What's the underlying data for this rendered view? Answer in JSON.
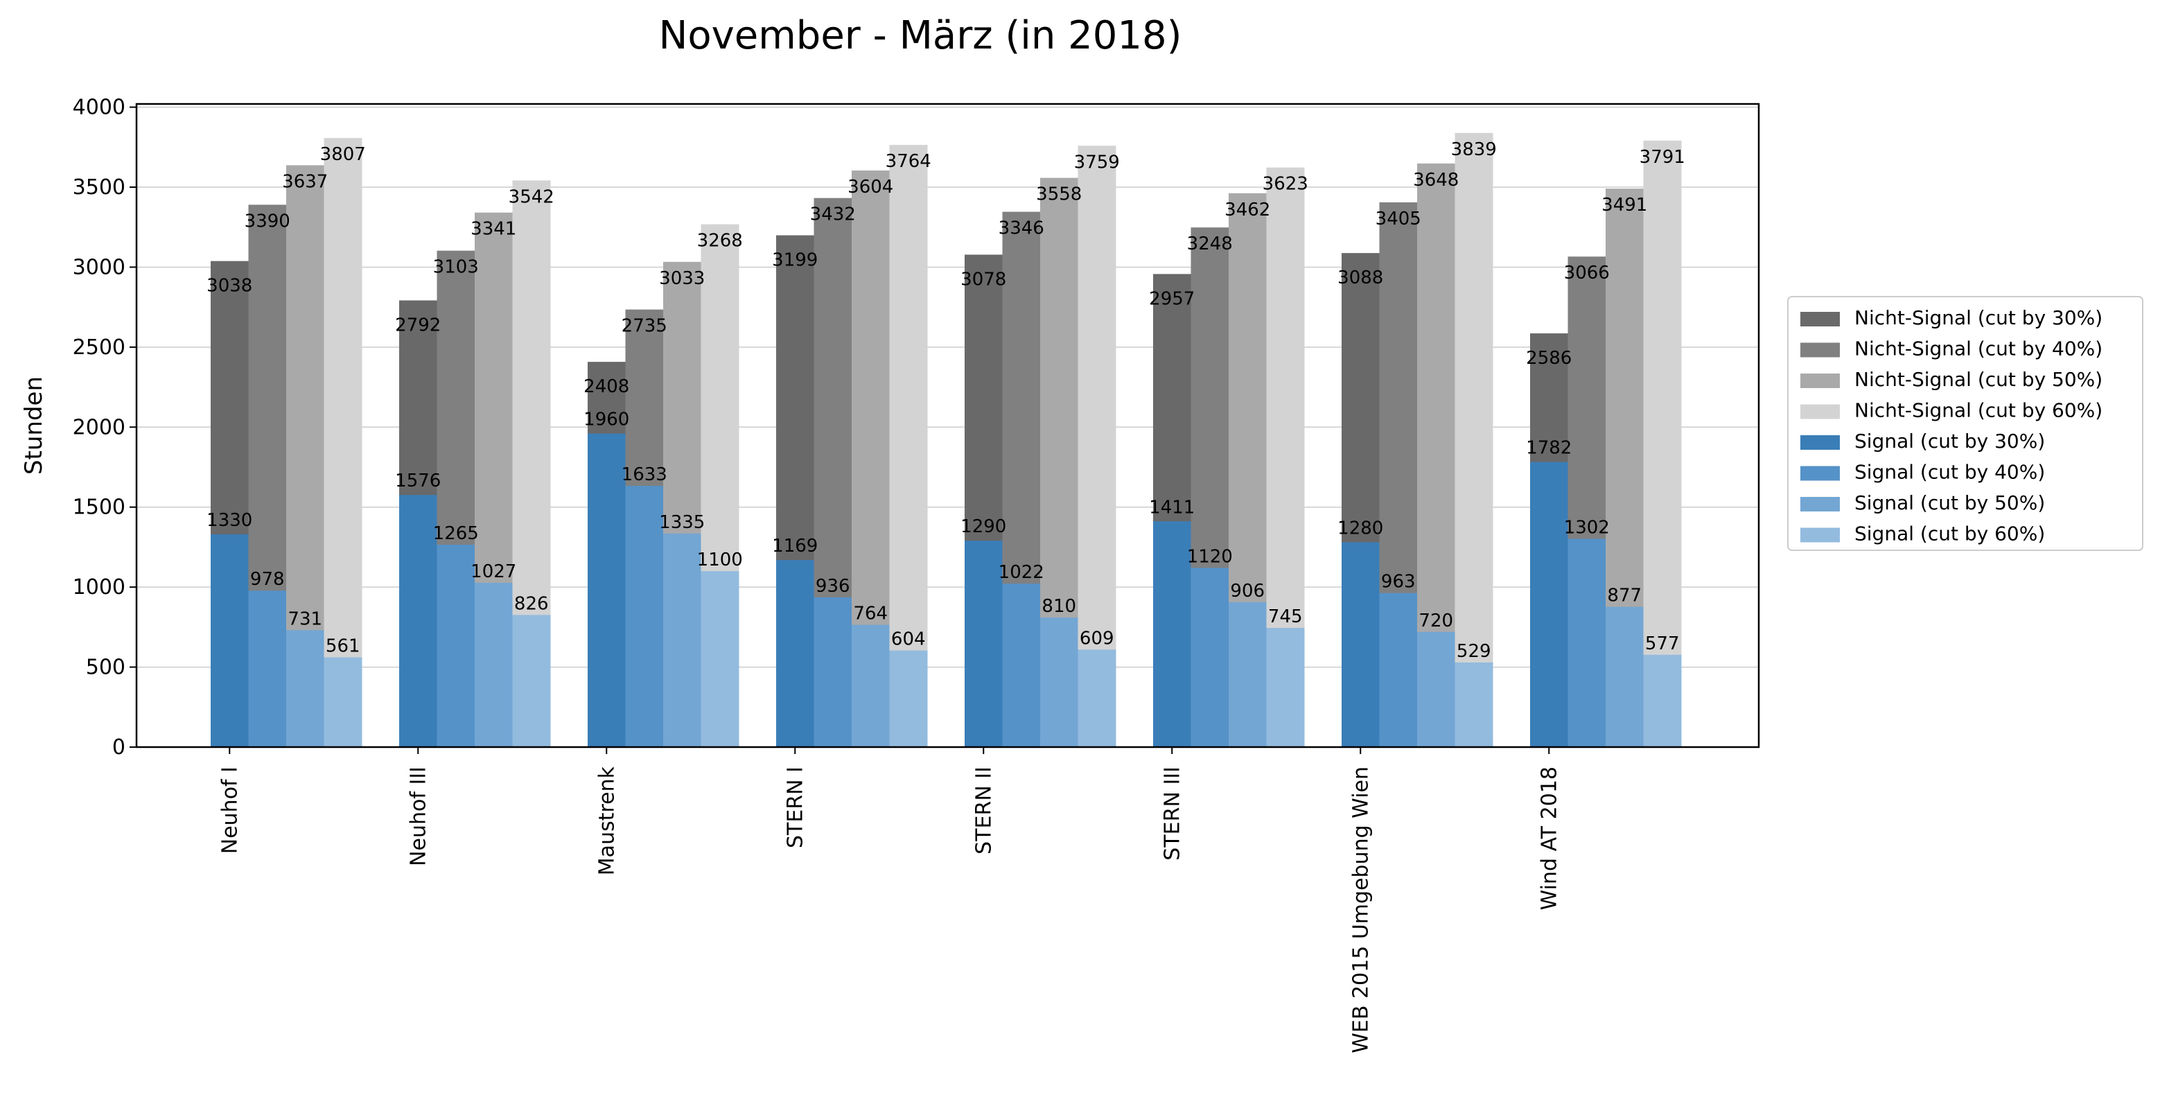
{
  "chart_data": {
    "type": "bar",
    "title": "November - März (in 2018)",
    "xlabel": "",
    "ylabel": "Stunden",
    "ylim": [
      0,
      4020
    ],
    "yticks": [
      0,
      500,
      1000,
      1500,
      2000,
      2500,
      3000,
      3500,
      4000
    ],
    "grid": "y",
    "legend_position": "right",
    "categories": [
      "Neuhof I",
      "Neuhof III",
      "Maustrenk",
      "STERN I",
      "STERN II",
      "STERN III",
      "WEB 2015 Umgebung Wien",
      "Wind AT 2018"
    ],
    "series": [
      {
        "name": "Nicht-Signal (cut by 30%)",
        "color": "#696969",
        "values": [
          3038,
          2792,
          2408,
          3199,
          3078,
          2957,
          3088,
          2586
        ]
      },
      {
        "name": "Nicht-Signal (cut by 40%)",
        "color": "#808080",
        "values": [
          3390,
          3103,
          2735,
          3432,
          3346,
          3248,
          3405,
          3066
        ]
      },
      {
        "name": "Nicht-Signal (cut by 50%)",
        "color": "#a9a9a9",
        "values": [
          3637,
          3341,
          3033,
          3604,
          3558,
          3462,
          3648,
          3491
        ]
      },
      {
        "name": "Nicht-Signal (cut by 60%)",
        "color": "#d3d3d3",
        "values": [
          3807,
          3542,
          3268,
          3764,
          3759,
          3623,
          3839,
          3791
        ]
      },
      {
        "name": "Signal (cut by 30%)",
        "color": "#3a7eb8",
        "values": [
          1330,
          1576,
          1960,
          1169,
          1290,
          1411,
          1280,
          1782
        ]
      },
      {
        "name": "Signal (cut by 40%)",
        "color": "#5592c8",
        "values": [
          978,
          1265,
          1633,
          936,
          1022,
          1120,
          963,
          1302
        ]
      },
      {
        "name": "Signal (cut by 50%)",
        "color": "#73a6d3",
        "values": [
          731,
          1027,
          1335,
          764,
          810,
          906,
          720,
          877
        ]
      },
      {
        "name": "Signal (cut by 60%)",
        "color": "#93bbde",
        "values": [
          561,
          826,
          1100,
          604,
          609,
          745,
          529,
          577
        ]
      }
    ]
  }
}
